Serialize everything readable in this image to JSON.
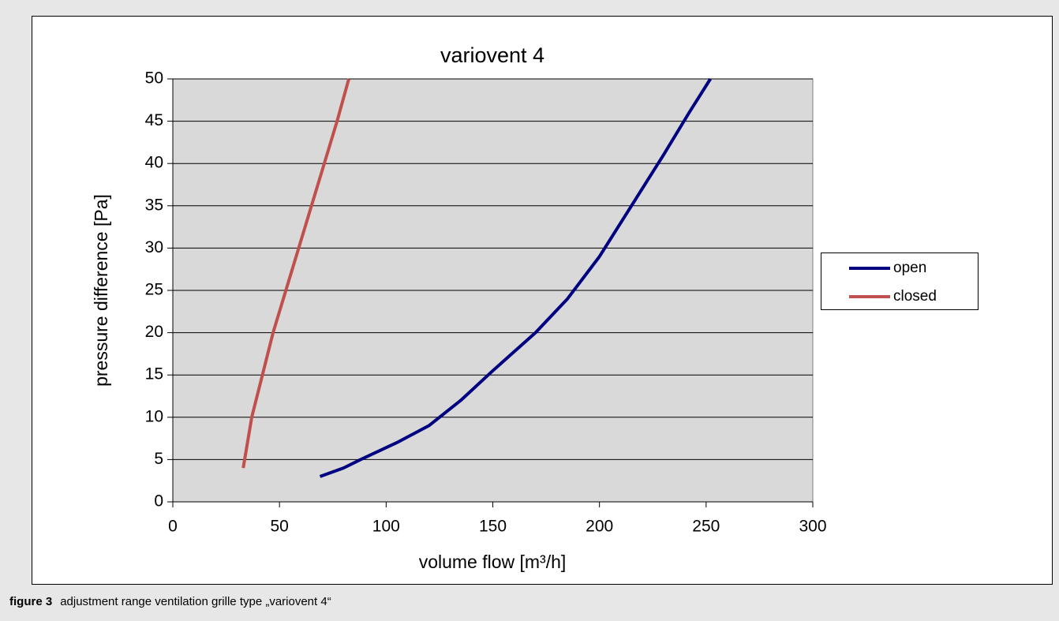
{
  "chart_data": {
    "type": "line",
    "title": "variovent 4",
    "x_label": "volume flow [m³/h]",
    "y_label": "pressure difference [Pa]",
    "xlim": [
      0,
      300
    ],
    "xticks": [
      0,
      50,
      100,
      150,
      200,
      250,
      300
    ],
    "ylim": [
      0,
      50
    ],
    "yticks": [
      0,
      5,
      10,
      15,
      20,
      25,
      30,
      35,
      40,
      45,
      50
    ],
    "grid": true,
    "legend": "right",
    "series": [
      {
        "name": "open",
        "color": "#000080",
        "x": [
          69,
          80,
          88,
          105,
          120,
          135,
          150,
          170,
          185,
          200,
          215,
          230,
          242,
          252
        ],
        "values": [
          3,
          4,
          5,
          7,
          9,
          12,
          15.5,
          20,
          24,
          29,
          35,
          41,
          46,
          50
        ]
      },
      {
        "name": "closed",
        "color": "#c0504d",
        "x": [
          33,
          37,
          42,
          47,
          53,
          59,
          65,
          71,
          77,
          82.5
        ],
        "values": [
          4,
          10,
          15,
          20,
          25,
          30,
          35,
          40,
          45,
          50
        ]
      }
    ]
  },
  "caption": {
    "label": "figure 3",
    "text": "adjustment range ventilation grille type „variovent 4“"
  }
}
